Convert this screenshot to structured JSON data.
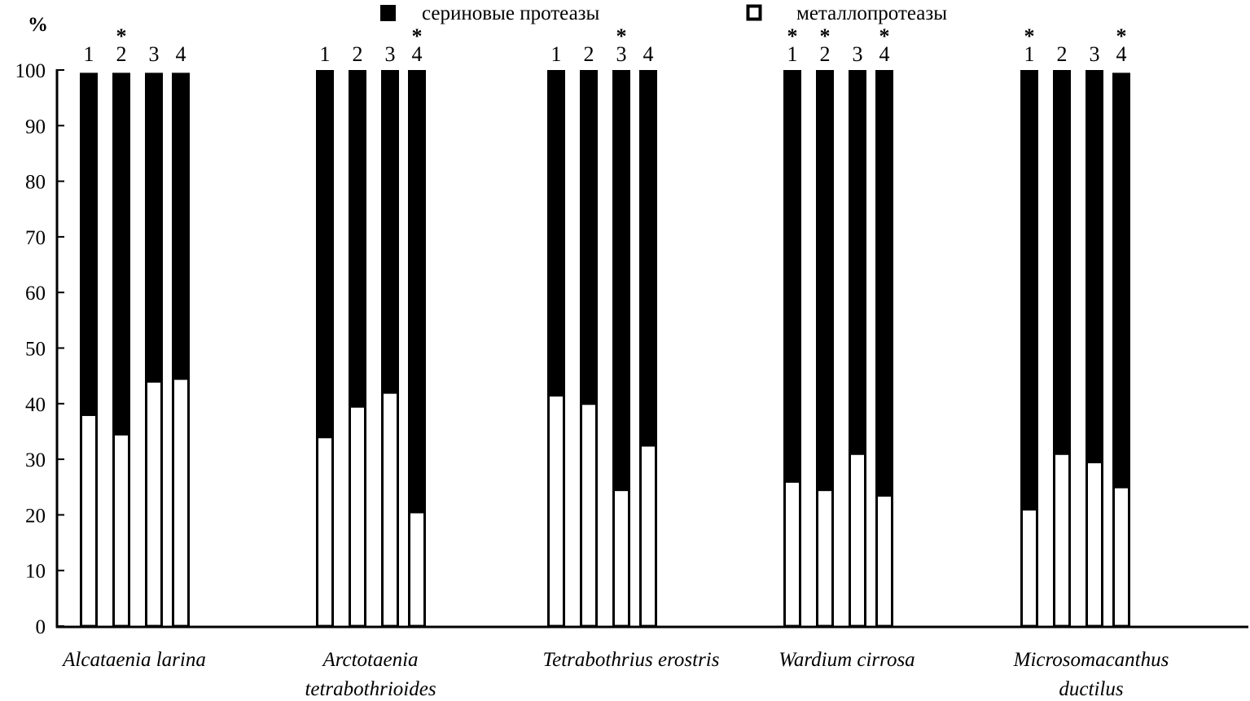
{
  "chart_data": {
    "type": "bar",
    "stacked": true,
    "ylabel": "%",
    "ylim": [
      0,
      100
    ],
    "yticks": [
      0,
      10,
      20,
      30,
      40,
      50,
      60,
      70,
      80,
      90,
      100
    ],
    "legend": {
      "placement": "top",
      "items": [
        {
          "name": "сериновые протеазы",
          "color": "#000000",
          "swatch": "filled"
        },
        {
          "name": "металлопротеазы",
          "color": "#ffffff",
          "swatch": "outlined"
        }
      ]
    },
    "colors": {
      "serine": "#000000",
      "metallo": "#ffffff",
      "outline": "#000000"
    },
    "groups": [
      {
        "label": [
          "Alcataenia larina"
        ],
        "bars": [
          {
            "num": "1",
            "metallo": 38,
            "total": 99.5,
            "star": false
          },
          {
            "num": "2",
            "metallo": 34.5,
            "total": 99.5,
            "star": true
          },
          {
            "num": "3",
            "metallo": 44,
            "total": 99.5,
            "star": false
          },
          {
            "num": "4",
            "metallo": 44.5,
            "total": 99.5,
            "star": false
          }
        ]
      },
      {
        "label": [
          "Arctotaenia",
          "tetrabothrioides"
        ],
        "bars": [
          {
            "num": "1",
            "metallo": 34,
            "total": 100,
            "star": false
          },
          {
            "num": "2",
            "metallo": 39.5,
            "total": 100,
            "star": false
          },
          {
            "num": "3",
            "metallo": 42,
            "total": 100,
            "star": false
          },
          {
            "num": "4",
            "metallo": 20.5,
            "total": 100,
            "star": true
          }
        ]
      },
      {
        "label": [
          "Tetrabothrius erostris"
        ],
        "bars": [
          {
            "num": "1",
            "metallo": 41.5,
            "total": 100,
            "star": false
          },
          {
            "num": "2",
            "metallo": 40,
            "total": 100,
            "star": false
          },
          {
            "num": "3",
            "metallo": 24.5,
            "total": 100,
            "star": true
          },
          {
            "num": "4",
            "metallo": 32.5,
            "total": 100,
            "star": false
          }
        ]
      },
      {
        "label": [
          "Wardium cirrosa"
        ],
        "bars": [
          {
            "num": "1",
            "metallo": 26,
            "total": 100,
            "star": true
          },
          {
            "num": "2",
            "metallo": 24.5,
            "total": 100,
            "star": true
          },
          {
            "num": "3",
            "metallo": 31,
            "total": 100,
            "star": false
          },
          {
            "num": "4",
            "metallo": 23.5,
            "total": 100,
            "star": true
          }
        ]
      },
      {
        "label": [
          "Microsomacanthus",
          "ductilus"
        ],
        "bars": [
          {
            "num": "1",
            "metallo": 21,
            "total": 100,
            "star": true
          },
          {
            "num": "2",
            "metallo": 31,
            "total": 100,
            "star": false
          },
          {
            "num": "3",
            "metallo": 29.5,
            "total": 100,
            "star": false
          },
          {
            "num": "4",
            "metallo": 25,
            "total": 99.5,
            "star": true
          }
        ]
      }
    ],
    "asterisk_text": "*"
  }
}
